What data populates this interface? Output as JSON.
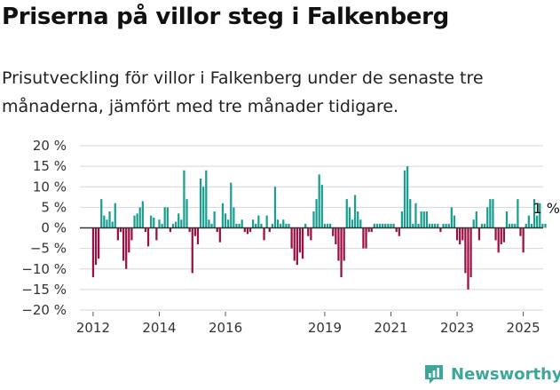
{
  "title": "Priserna på villor steg i Falkenberg",
  "subtitle": "Prisutveckling för villor i Falkenberg under de senaste tre månaderna, jämfört med tre månader tidigare.",
  "brand": "Newsworthy",
  "colors": {
    "positive": "#1a9e91",
    "negative": "#9b0f44",
    "grid": "#d6d6d6",
    "zero": "#333333",
    "brand": "#3aa79a"
  },
  "chart_data": {
    "type": "bar",
    "title": "",
    "xlabel": "",
    "ylabel": "",
    "ylim": [
      -20,
      20
    ],
    "y_ticks": [
      "20 %",
      "15 %",
      "10 %",
      "5 %",
      "0 %",
      "−5 %",
      "−10 %",
      "−15 %",
      "−20 %"
    ],
    "y_tick_values": [
      20,
      15,
      10,
      5,
      0,
      -5,
      -10,
      -15,
      -20
    ],
    "x_ticks": [
      "2012",
      "2014",
      "2016",
      "2019",
      "2021",
      "2023",
      "2025"
    ],
    "x_tick_values": [
      2012.0,
      2014.0,
      2016.0,
      2019.0,
      2021.0,
      2023.0,
      2025.0
    ],
    "x_range": [
      2011.6,
      2025.6
    ],
    "grid": true,
    "last_value_label": "1 %",
    "series": [
      {
        "start": 2012.0,
        "step_months": 1,
        "values": [
          -12,
          -9,
          -7.5,
          7,
          3,
          2,
          4,
          1.5,
          6,
          -3,
          -1,
          -8,
          -10,
          -6,
          -3,
          3,
          3.5,
          5,
          6.5,
          -1,
          -4.5,
          3,
          2.5,
          -3,
          2,
          1,
          5,
          5,
          -1,
          1,
          1.5,
          3.5,
          2,
          14,
          7,
          -1,
          -11,
          -2,
          -4,
          12,
          10,
          14,
          2,
          1,
          4,
          -1,
          -3.5,
          6,
          3.5,
          2,
          11,
          5,
          1,
          1,
          2,
          -1,
          -1.5,
          -1,
          2,
          1,
          3,
          1,
          -3,
          3,
          -1,
          1,
          10,
          2,
          1,
          2,
          1,
          1,
          -5,
          -8,
          -9,
          -6,
          -7.5,
          1,
          -2,
          -3,
          4,
          7,
          13,
          10.5,
          1,
          1,
          1,
          -2,
          -4,
          -8,
          -12,
          -8,
          7,
          5,
          2,
          8,
          4,
          2,
          -5,
          -5,
          -1,
          -1,
          1,
          1,
          1,
          1,
          1,
          1,
          1,
          1,
          -1,
          -2,
          4,
          14,
          15,
          7,
          1,
          6,
          1,
          4,
          4,
          4,
          1,
          1,
          1,
          1,
          -1,
          1,
          1,
          1,
          5,
          3,
          -3,
          -4,
          -3,
          -11,
          -15,
          -12,
          2,
          4,
          -3,
          1,
          1,
          5,
          7,
          7,
          -3,
          -6,
          -4,
          -3.5,
          4,
          1,
          1,
          1,
          7,
          -2,
          -6,
          1,
          3,
          1,
          7,
          3,
          6,
          1,
          1
        ]
      }
    ]
  }
}
